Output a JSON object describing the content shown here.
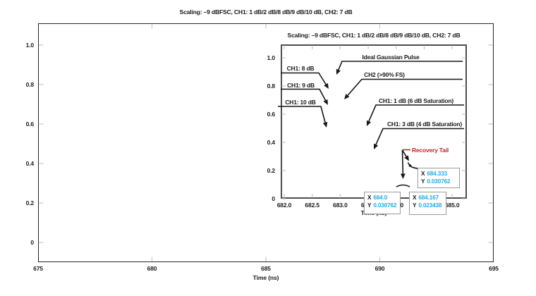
{
  "figure": {
    "main": {
      "title": "Scaling: –9 dBFSC, CH1: 1 dB/2 dB/8 dB/9 dB/10 dB, CH2: 7 dB",
      "xlabel": "Time (ns)",
      "x_ticks": [
        "675",
        "680",
        "685",
        "690",
        "695"
      ],
      "y_ticks": [
        "0",
        "0.2",
        "0.4",
        "0.6",
        "0.8",
        "1.0"
      ]
    },
    "inset": {
      "title": "Scaling: –9 dBFSC, CH1: 1 dB/2 dB/8 dB/9 dB/10 dB, CH2: 7 dB",
      "xlabel": "Time (ns)",
      "x_ticks": [
        "682.0",
        "682.5",
        "683.0",
        "683.5",
        "684.0",
        "684.5",
        "685.0"
      ],
      "y_ticks": [
        "0",
        "0.2",
        "0.4",
        "0.6",
        "0.8",
        "1.0"
      ],
      "annotations": [
        "Ideal Gaussian Pulse",
        "CH1: 8 dB",
        "CH2 (>90% FS)",
        "CH1: 9 dB",
        "CH1: 10 dB",
        "CH1: 1 dB (6 dB Saturation)",
        "CH1: 3 dB (4 dB Saturation)"
      ],
      "recovery_label": "Recovery Tail",
      "callouts": [
        {
          "x_label": "X",
          "x": "684.0",
          "y_label": "Y",
          "y": "0.030762"
        },
        {
          "x_label": "X",
          "x": "684.167",
          "y_label": "Y",
          "y": "0.023438"
        },
        {
          "x_label": "X",
          "x": "684.333",
          "y_label": "Y",
          "y": "0.030762"
        }
      ]
    }
  },
  "colors": {
    "value_cyan": "#29ABE2",
    "recovery_red": "#C1272D",
    "axis_black": "#262626",
    "inset_border_gray": "#4d4d4d",
    "tick_gray": "#c9c9c9",
    "callout_border_gray": "#9a9a9a"
  },
  "chart_data": [
    {
      "type": "line",
      "role": "main-plot",
      "title": "Scaling: –9 dBFSC, CH1: 1 dB/2 dB/8 dB/9 dB/10 dB, CH2: 7 dB",
      "xlabel": "Time (ns)",
      "ylabel": "",
      "xlim": [
        675,
        695
      ],
      "ylim": [
        -0.1,
        1.11
      ],
      "x_ticks": [
        675,
        680,
        685,
        690,
        695
      ],
      "y_ticks": [
        0,
        0.2,
        0.4,
        0.6,
        0.8,
        1.0
      ],
      "grid": false,
      "legend": "none",
      "note": "No trace visibly resolvable at this scale; detail shown in zoom inset"
    },
    {
      "type": "line",
      "role": "zoom-inset",
      "title": "Scaling: –9 dBFSC, CH1: 1 dB/2 dB/8 dB/9 dB/10 dB, CH2: 7 dB",
      "xlabel": "Time (ns)",
      "ylabel": "",
      "xlim": [
        681.9,
        685.3
      ],
      "ylim": [
        -0.01,
        1.09
      ],
      "x_ticks": [
        682.0,
        682.5,
        683.0,
        683.5,
        684.0,
        684.5,
        685.0
      ],
      "y_ticks": [
        0,
        0.2,
        0.4,
        0.6,
        0.8,
        1.0
      ],
      "grid": false,
      "legend": "none",
      "annotations": [
        {
          "label": "Ideal Gaussian Pulse",
          "arrow_points_to": {
            "x": 683.0,
            "y": 0.88
          }
        },
        {
          "label": "CH1: 8 dB",
          "arrow_points_to": {
            "x": 682.8,
            "y": 0.78
          }
        },
        {
          "label": "CH2 (>90% FS)",
          "arrow_points_to": {
            "x": 683.07,
            "y": 0.71
          }
        },
        {
          "label": "CH1: 9 dB",
          "arrow_points_to": {
            "x": 682.78,
            "y": 0.66
          }
        },
        {
          "label": "CH1: 10 dB",
          "arrow_points_to": {
            "x": 682.76,
            "y": 0.51
          }
        },
        {
          "label": "CH1: 1 dB (6 dB Saturation)",
          "arrow_points_to": {
            "x": 683.47,
            "y": 0.51
          }
        },
        {
          "label": "CH1: 3 dB (4 dB Saturation)",
          "arrow_points_to": {
            "x": 683.6,
            "y": 0.35
          }
        },
        {
          "label": "Recovery Tail",
          "color": "#C1272D",
          "arrow_points_to": [
            {
              "x": 684.28,
              "y": 0.2
            },
            {
              "x": 684.12,
              "y": 0.08
            }
          ]
        }
      ],
      "cursor_markers": [
        {
          "x": 684.0,
          "y": 0.030762
        },
        {
          "x": 684.167,
          "y": 0.023438
        },
        {
          "x": 684.333,
          "y": 0.030762
        }
      ],
      "visible_trace_fragments": [
        {
          "desc": "recovery tail bend near y=0.2",
          "x_range": [
            684.25,
            684.55
          ]
        },
        {
          "desc": "small hump near y=0.07",
          "x_range": [
            683.95,
            684.2
          ]
        }
      ]
    }
  ]
}
